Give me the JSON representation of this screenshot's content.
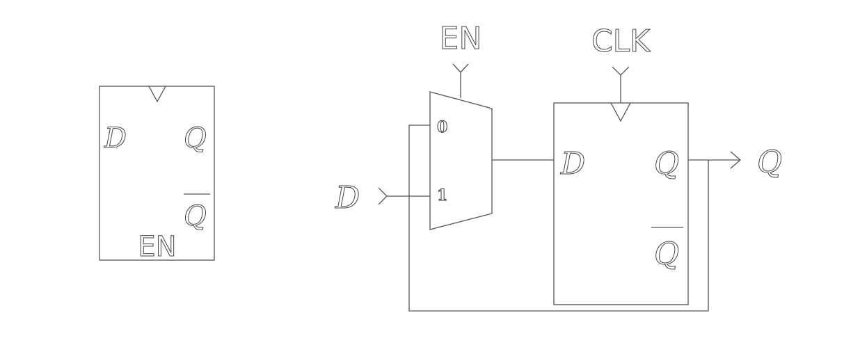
{
  "symbol": {
    "in_d": "D",
    "out_q": "Q",
    "out_qbar": "Q",
    "enable": "EN"
  },
  "circuit": {
    "en": "EN",
    "clk": "CLK",
    "d_in": "D",
    "q_out": "Q",
    "mux_in0": "0",
    "mux_in1": "1",
    "ff_d": "D",
    "ff_q": "Q",
    "ff_qbar": "Q"
  }
}
